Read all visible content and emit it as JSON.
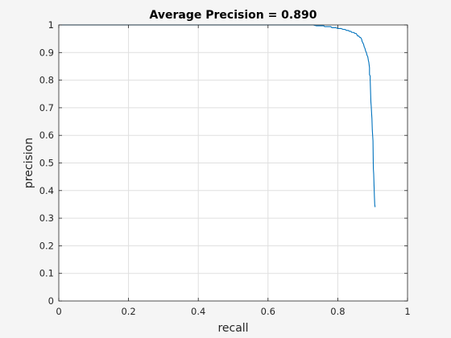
{
  "colors": {
    "figure_bg": "#f5f5f5",
    "axes_bg": "#ffffff",
    "grid": "#dfdfdf",
    "axis": "#262626",
    "line": "#0072bd"
  },
  "chart_data": {
    "type": "line",
    "title": "Average Precision = 0.890",
    "xlabel": "recall",
    "ylabel": "precision",
    "xlim": [
      0,
      1
    ],
    "ylim": [
      0,
      1
    ],
    "grid": true,
    "xticks": [
      0,
      0.2,
      0.4,
      0.6,
      0.8,
      1
    ],
    "xtick_labels": [
      "0",
      "0.2",
      "0.4",
      "0.6",
      "0.8",
      "1"
    ],
    "yticks": [
      0,
      0.1,
      0.2,
      0.3,
      0.4,
      0.5,
      0.6,
      0.7,
      0.8,
      0.9,
      1
    ],
    "ytick_labels": [
      "0",
      "0.1",
      "0.2",
      "0.3",
      "0.4",
      "0.5",
      "0.6",
      "0.7",
      "0.8",
      "0.9",
      "1"
    ],
    "series": [
      {
        "x": [
          0,
          0.2,
          0.4,
          0.6,
          0.73,
          0.738,
          0.76,
          0.762,
          0.78,
          0.783,
          0.795,
          0.8,
          0.81,
          0.815,
          0.82,
          0.826,
          0.83,
          0.834,
          0.838,
          0.84,
          0.845,
          0.85,
          0.853,
          0.857,
          0.86,
          0.863,
          0.865,
          0.868,
          0.87,
          0.872,
          0.874,
          0.876,
          0.878,
          0.88,
          0.882,
          0.884,
          0.886,
          0.888,
          0.889,
          0.891,
          0.891,
          0.893,
          0.893,
          0.895,
          0.896,
          0.897,
          0.898,
          0.899,
          0.9,
          0.901,
          0.902,
          0.903,
          0.904,
          0.905,
          0.906,
          0.907
        ],
        "y": [
          1,
          1,
          1,
          1,
          1,
          0.997,
          0.997,
          0.994,
          0.994,
          0.99,
          0.99,
          0.987,
          0.987,
          0.984,
          0.984,
          0.98,
          0.98,
          0.977,
          0.977,
          0.973,
          0.973,
          0.969,
          0.969,
          0.96,
          0.96,
          0.955,
          0.955,
          0.95,
          0.94,
          0.935,
          0.93,
          0.92,
          0.915,
          0.905,
          0.9,
          0.89,
          0.885,
          0.87,
          0.865,
          0.845,
          0.82,
          0.815,
          0.8,
          0.72,
          0.705,
          0.68,
          0.66,
          0.62,
          0.6,
          0.58,
          0.48,
          0.46,
          0.42,
          0.38,
          0.35,
          0.34
        ]
      }
    ]
  }
}
